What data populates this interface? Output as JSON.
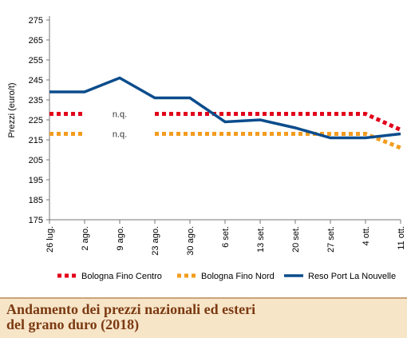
{
  "caption": {
    "title": "Andamento dei prezzi nazionali ed esteri\ndel grano duro (2018)"
  },
  "chart_data": {
    "type": "line",
    "title": "",
    "xlabel": "",
    "ylabel": "Prezzi (euro/t)",
    "categories": [
      "26 lug.",
      "2 ago.",
      "9 ago.",
      "23 ago.",
      "30 ago.",
      "6 set.",
      "13 set.",
      "20 set.",
      "27 set.",
      "4 ott.",
      "11 ott."
    ],
    "ylim": [
      175,
      275
    ],
    "yticks": [
      175,
      185,
      195,
      205,
      215,
      225,
      235,
      245,
      255,
      265,
      275
    ],
    "grid": false,
    "legend_position": "bottom",
    "series": [
      {
        "name": "Bologna Fino Centro",
        "color": "#e2001a",
        "style": "dotted",
        "values": [
          228,
          228,
          null,
          228,
          228,
          228,
          228,
          228,
          228,
          228,
          220
        ]
      },
      {
        "name": "Bologna Fino Nord",
        "color": "#f39c1e",
        "style": "dotted",
        "values": [
          218,
          218,
          null,
          218,
          218,
          218,
          218,
          218,
          218,
          218,
          211
        ]
      },
      {
        "name": "Reso Port La Nouvelle",
        "color": "#0b4c8c",
        "style": "solid",
        "values": [
          239,
          239,
          246,
          236,
          236,
          224,
          225,
          221,
          216,
          216,
          218
        ]
      }
    ],
    "annotations": [
      {
        "text": "n.q.",
        "series": "Bologna Fino Centro",
        "category": "9 ago."
      },
      {
        "text": "n.q.",
        "series": "Bologna Fino Nord",
        "category": "9 ago."
      }
    ]
  }
}
